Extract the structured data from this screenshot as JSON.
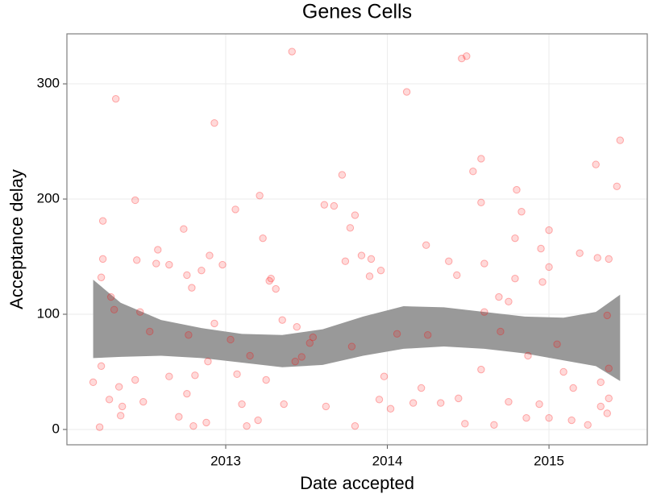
{
  "chart_data": {
    "type": "scatter",
    "title": "Genes Cells",
    "x_label": "Date accepted",
    "y_label": "Acceptance delay",
    "color": "#ff0000",
    "x": [
      2012.18,
      2012.22,
      2012.24,
      2012.24,
      2012.23,
      2012.23,
      2012.29,
      2012.31,
      2012.32,
      2012.28,
      2012.34,
      2012.35,
      2012.36,
      2012.44,
      2012.45,
      2012.44,
      2012.47,
      2012.49,
      2012.53,
      2012.58,
      2012.57,
      2012.65,
      2012.65,
      2012.71,
      2012.74,
      2012.76,
      2012.79,
      2012.77,
      2012.76,
      2012.81,
      2012.8,
      2012.85,
      2012.9,
      2012.93,
      2012.93,
      2012.89,
      2012.88,
      2012.98,
      2013.03,
      2013.06,
      2013.07,
      2013.1,
      2013.15,
      2013.13,
      2013.21,
      2013.23,
      2013.27,
      2013.28,
      2013.31,
      2013.25,
      2013.2,
      2013.36,
      2013.41,
      2013.43,
      2013.35,
      2013.44,
      2013.47,
      2013.52,
      2013.62,
      2013.61,
      2013.67,
      2013.72,
      2013.74,
      2013.77,
      2013.8,
      2013.78,
      2013.8,
      2013.84,
      2013.9,
      2013.89,
      2013.96,
      2013.98,
      2013.95,
      2014.02,
      2014.12,
      2014.06,
      2014.16,
      2014.24,
      2014.25,
      2014.21,
      2014.33,
      2014.38,
      2014.43,
      2014.44,
      2014.46,
      2014.49,
      2014.48,
      2014.53,
      2014.58,
      2014.58,
      2014.6,
      2014.6,
      2014.58,
      2014.66,
      2014.69,
      2014.7,
      2014.75,
      2014.79,
      2014.8,
      2014.79,
      2014.83,
      2014.87,
      2014.75,
      2014.86,
      2014.95,
      2014.96,
      2015.0,
      2015.0,
      2014.94,
      2015.0,
      2015.05,
      2015.09,
      2015.19,
      2015.15,
      2015.14,
      2015.29,
      2015.3,
      2015.37,
      2015.42,
      2015.44,
      2015.36,
      2015.37,
      2015.32,
      2015.37,
      2015.36,
      2015.24,
      2015.32,
      2013.54
    ],
    "values": [
      41,
      2,
      181,
      148,
      132,
      55,
      115,
      104,
      287,
      26,
      37,
      12,
      20,
      199,
      147,
      43,
      102,
      24,
      85,
      156,
      144,
      143,
      46,
      11,
      174,
      134,
      123,
      82,
      31,
      47,
      3,
      138,
      151,
      266,
      92,
      59,
      6,
      143,
      78,
      191,
      48,
      22,
      64,
      3,
      203,
      166,
      129,
      131,
      122,
      43,
      8,
      22,
      328,
      59,
      95,
      89,
      63,
      75,
      20,
      195,
      194,
      221,
      146,
      175,
      186,
      72,
      3,
      151,
      148,
      133,
      138,
      46,
      26,
      18,
      293,
      83,
      23,
      160,
      82,
      36,
      23,
      146,
      134,
      27,
      322,
      324,
      5,
      224,
      235,
      197,
      144,
      102,
      52,
      4,
      115,
      85,
      111,
      166,
      208,
      131,
      189,
      64,
      24,
      10,
      157,
      128,
      173,
      141,
      22,
      10,
      74,
      50,
      153,
      36,
      8,
      230,
      149,
      148,
      211,
      251,
      99,
      53,
      41,
      27,
      14,
      4,
      20,
      80
    ],
    "band": {
      "color": "#999999",
      "x": [
        2012.18,
        2012.35,
        2012.6,
        2012.85,
        2013.1,
        2013.35,
        2013.6,
        2013.85,
        2014.1,
        2014.35,
        2014.6,
        2014.85,
        2015.09,
        2015.29,
        2015.44
      ],
      "upper": [
        130,
        110,
        95,
        88,
        83,
        82,
        87,
        98,
        107,
        106,
        102,
        98,
        97,
        102,
        117
      ],
      "lower": [
        62,
        63,
        64,
        62,
        58,
        54,
        56,
        64,
        70,
        72,
        70,
        66,
        60,
        55,
        42
      ]
    },
    "xlim": [
      2012.0175,
      2015.608
    ],
    "xticks": [
      2013,
      2014,
      2015
    ],
    "ylim": [
      -13.3,
      343.4
    ],
    "yticks": [
      0,
      100,
      200,
      300
    ],
    "grid": true
  }
}
